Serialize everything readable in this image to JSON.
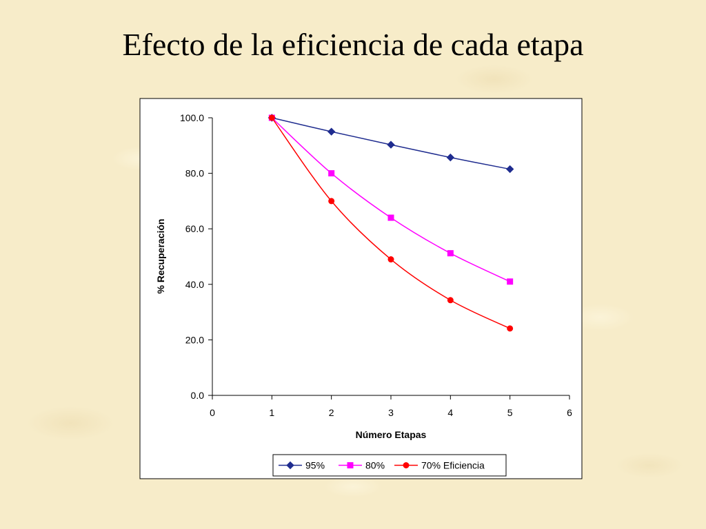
{
  "slide": {
    "title": "Efecto de la eficiencia de cada etapa"
  },
  "chart_data": {
    "type": "line",
    "title": "",
    "xlabel": "Número Etapas",
    "ylabel": "% Recuperación",
    "xlim": [
      0,
      6
    ],
    "ylim": [
      0,
      100
    ],
    "xticks": [
      "0",
      "1",
      "2",
      "3",
      "4",
      "5",
      "6"
    ],
    "yticks": [
      "0.0",
      "20.0",
      "40.0",
      "60.0",
      "80.0",
      "100.0"
    ],
    "grid": false,
    "legend_position": "bottom",
    "x": [
      1,
      2,
      3,
      4,
      5
    ],
    "series": [
      {
        "name": "95%",
        "values": [
          100,
          95,
          90.3,
          85.7,
          81.5
        ],
        "color": "#1f2c8f",
        "marker": "diamond"
      },
      {
        "name": "80%",
        "values": [
          100,
          80,
          64,
          51.2,
          41
        ],
        "color": "#ff00ff",
        "marker": "square"
      },
      {
        "name": "70% Eficiencia",
        "values": [
          100,
          70,
          49,
          34.3,
          24.1
        ],
        "color": "#ff0000",
        "marker": "circle"
      }
    ]
  }
}
